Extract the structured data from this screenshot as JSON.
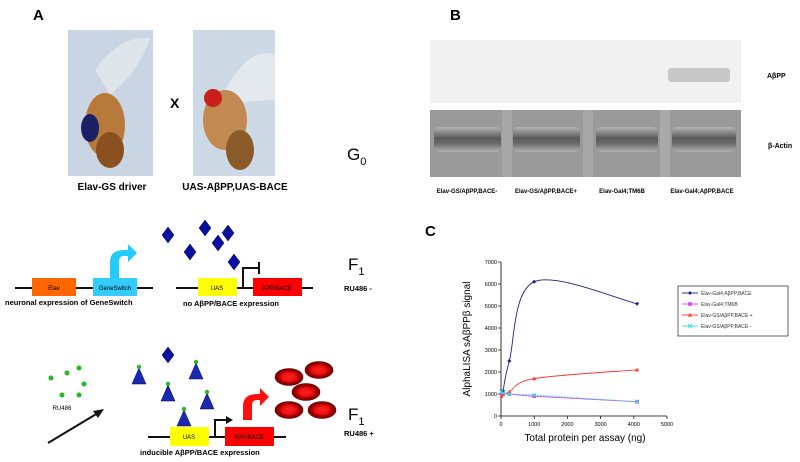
{
  "panels": {
    "a": "A",
    "b": "B",
    "c": "C"
  },
  "panel_a": {
    "cross_symbol": "X",
    "left_fly_caption": "Elav-GS driver",
    "right_fly_caption": "UAS-AβPP,UAS-BACE",
    "generation_g0": "G",
    "g0_sub": "0",
    "row1": {
      "elav_box": "Elav",
      "geneswitch_box": "GeneSwitch",
      "uas_box": "UAS",
      "app_box": "APP/BACE",
      "left_caption": "neuronal expression of GeneSwitch",
      "right_caption": "no AβPP/BACE expression",
      "generation": "F",
      "generation_sub": "1",
      "condition": "RU486 -"
    },
    "row2": {
      "ru486_label": "RU486",
      "uas_box": "UAS",
      "app_box": "APP/BACE",
      "caption": "inducible AβPP/BACE expression",
      "generation": "F",
      "generation_sub": "1",
      "condition": "RU486 +"
    },
    "colors": {
      "elav": "#ff6600",
      "geneswitch": "#33ccff",
      "uas": "#ffff00",
      "app": "#ff0000",
      "diamond": "#0a109e",
      "ligand": "#22bb22",
      "protein": "#990000"
    }
  },
  "panel_b": {
    "row_labels": [
      "AβPP",
      "β-Actin"
    ],
    "lane_labels": [
      "Elav-GS/AβPP,BACE-",
      "Elav-GS/AβPP,BACE+",
      "Elav-Gal4;TM6B",
      "Elav-Gal4;AβPP,BACE"
    ]
  },
  "chart_data": {
    "type": "line",
    "title": "",
    "xlabel": "Total protein per assay (ng)",
    "ylabel": "AlphaLISA sAβPPβ signal",
    "xlim": [
      0,
      5000
    ],
    "ylim": [
      0,
      7000
    ],
    "xticks": [
      0,
      1000,
      2000,
      3000,
      4000,
      5000
    ],
    "yticks": [
      0,
      1000,
      2000,
      3000,
      4000,
      5000,
      6000,
      7000
    ],
    "grid": false,
    "legend_position": "right",
    "x": [
      15,
      62,
      250,
      1000,
      4100
    ],
    "series": [
      {
        "name": "Elav-Gal4;AβPP,BACE",
        "color": "#1a237e",
        "marker": "diamond",
        "values": [
          1000,
          1150,
          2500,
          6100,
          5100
        ]
      },
      {
        "name": "Elav-Gal4;TM6B",
        "color": "#e040fb",
        "marker": "square",
        "values": [
          1000,
          1000,
          1000,
          900,
          650
        ]
      },
      {
        "name": "Elav-GS/AβPP,BACE +",
        "color": "#ff3333",
        "marker": "triangle",
        "values": [
          900,
          1000,
          1100,
          1700,
          2100
        ]
      },
      {
        "name": "Elav-GS/AβPP,BACE -",
        "color": "#33dddd",
        "marker": "x",
        "values": [
          1100,
          1050,
          1000,
          950,
          650
        ]
      }
    ]
  }
}
